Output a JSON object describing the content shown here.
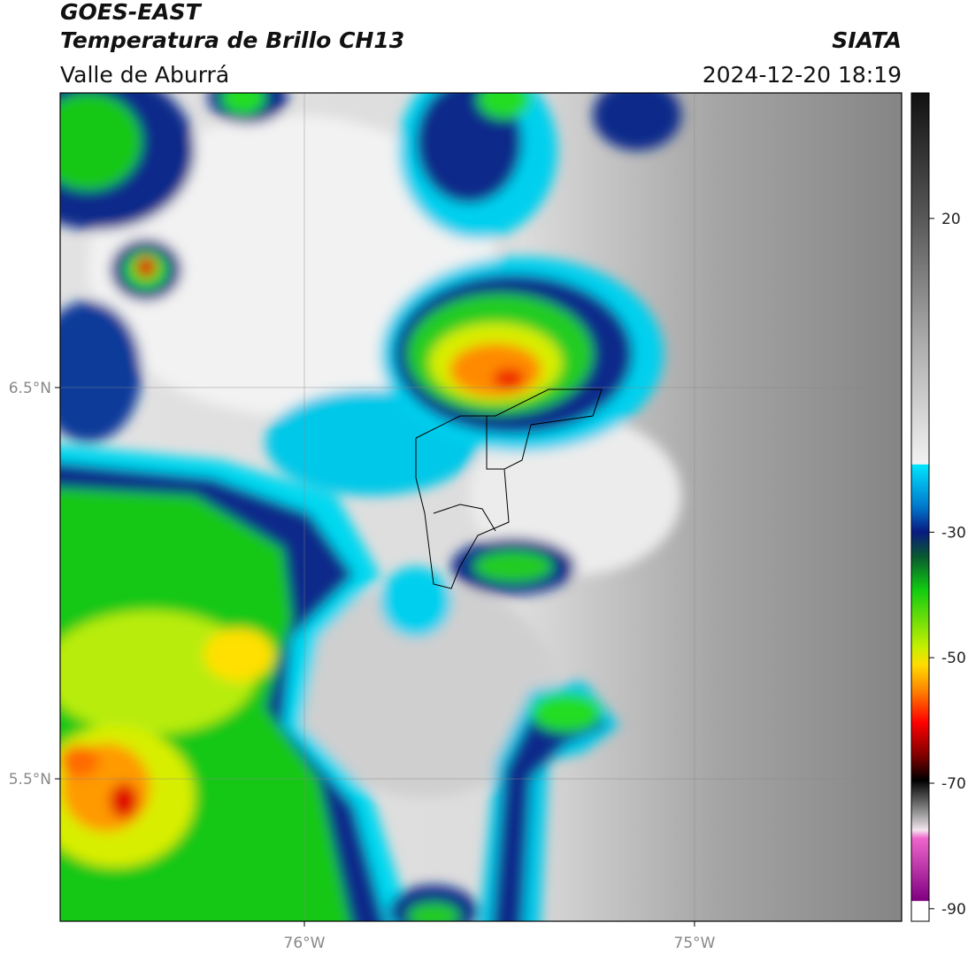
{
  "header": {
    "title": "GOES-EAST",
    "subtitle": "Temperatura de Brillo CH13",
    "source": "SIATA",
    "region": "Valle de Aburrá",
    "datetime": "2024-12-20 18:19"
  },
  "map": {
    "xlim": [
      -76.626,
      -74.469
    ],
    "ylim": [
      5.136,
      7.253
    ],
    "xticks": [
      {
        "value": -76,
        "label": "76°W"
      },
      {
        "value": -75,
        "label": "75°W"
      }
    ],
    "yticks": [
      {
        "value": 6.5,
        "label": "6.5°N"
      },
      {
        "value": 5.5,
        "label": "5.5°N"
      }
    ]
  },
  "colorbar": {
    "lim": [
      -92,
      40
    ],
    "ticks": [
      20,
      -30,
      -50,
      -70,
      -90
    ]
  }
}
